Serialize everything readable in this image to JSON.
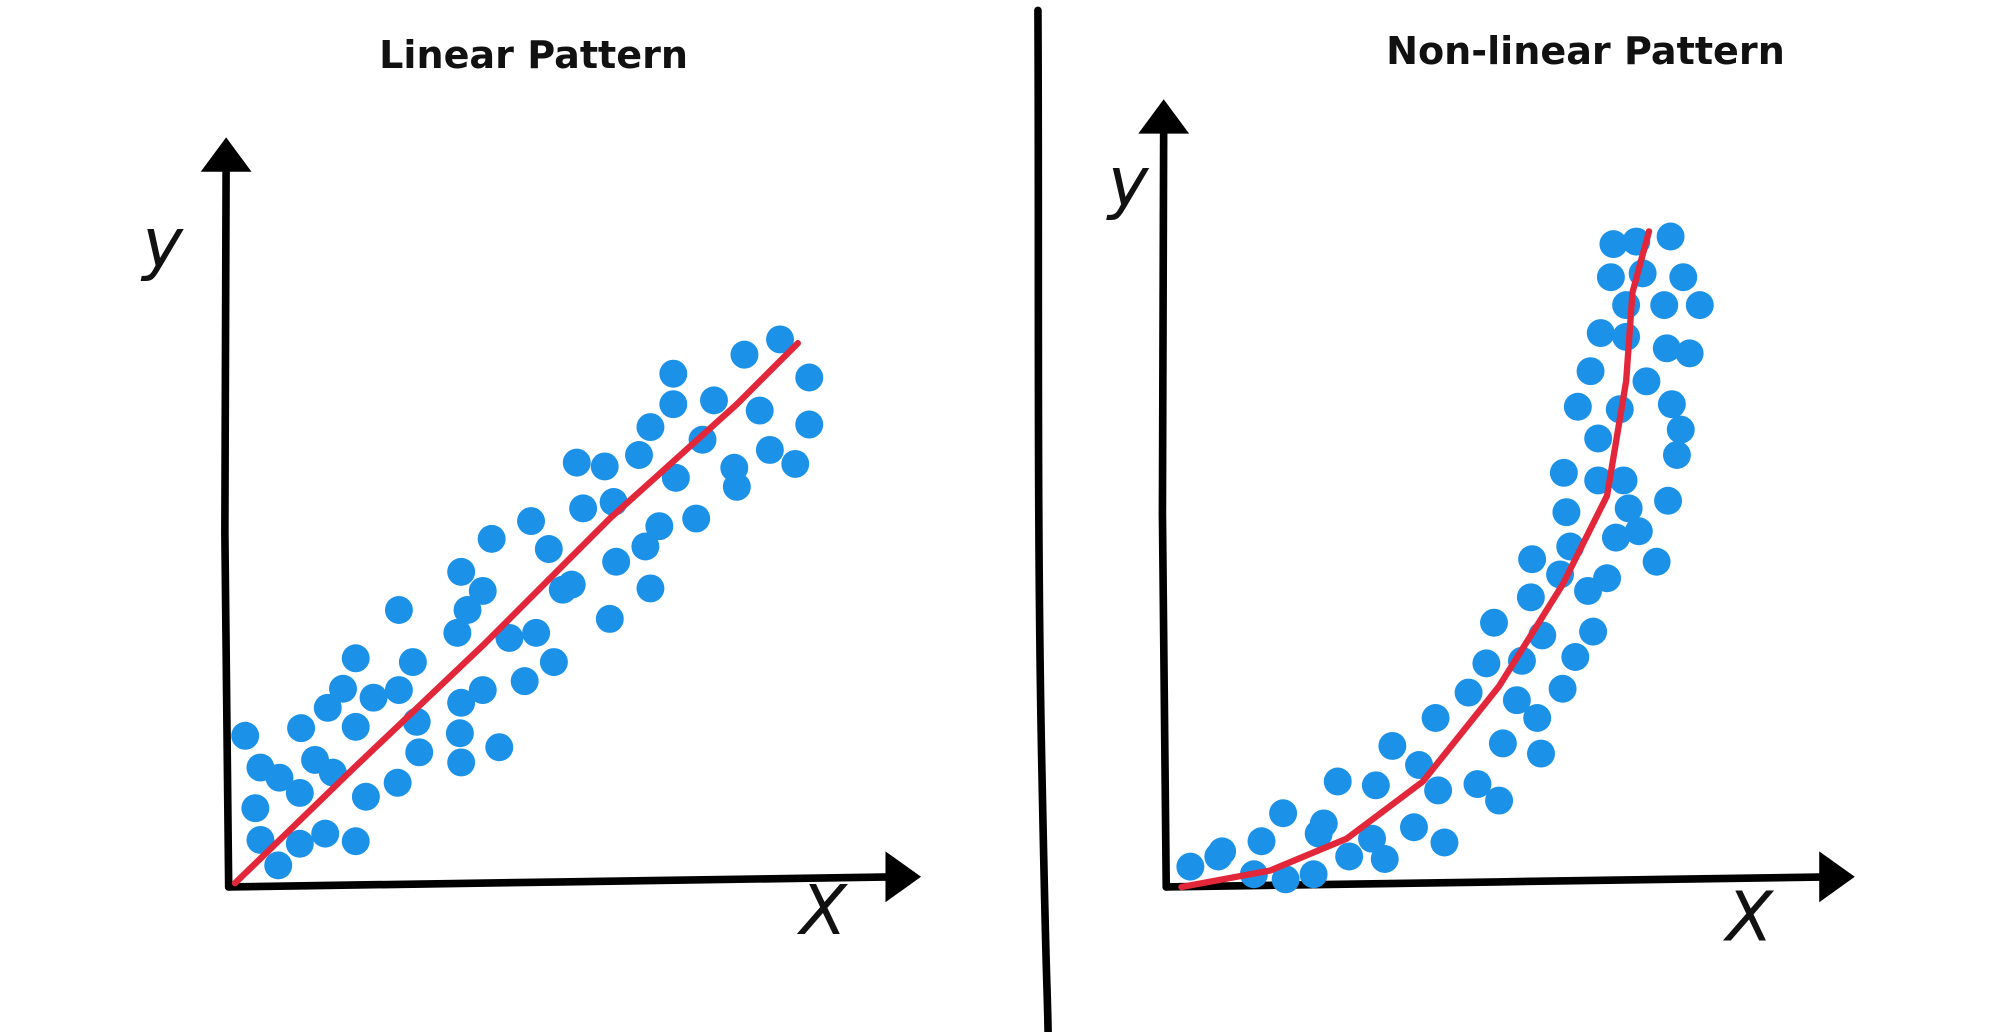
{
  "chart_data": [
    {
      "type": "scatter",
      "title": "Linear Pattern",
      "xlabel": "X",
      "ylabel": "y",
      "color": "#1b91e8",
      "xlim": [
        0,
        525
      ],
      "ylim": [
        0,
        558
      ],
      "x": [
        13,
        25,
        21,
        25,
        39,
        40,
        56,
        57,
        56,
        68,
        76,
        78,
        82,
        90,
        100,
        100,
        100,
        108,
        114,
        134,
        134,
        133,
        145,
        148,
        150,
        183,
        180,
        183,
        182,
        183,
        188,
        200,
        200,
        213,
        207,
        221,
        233,
        238,
        242,
        252,
        256,
        263,
        270,
        274,
        279,
        296,
        300,
        305,
        303,
        323,
        328,
        332,
        332,
        339,
        350,
        350,
        352,
        368,
        373,
        382,
        398,
        400,
        406,
        418,
        426,
        434,
        446,
        457,
        457
      ],
      "y": [
        119,
        94,
        62,
        37,
        17,
        86,
        74,
        125,
        34,
        100,
        42,
        141,
        90,
        156,
        126,
        180,
        36,
        71,
        149,
        155,
        218,
        82,
        177,
        130,
        106,
        248,
        200,
        145,
        121,
        98,
        218,
        233,
        155,
        110,
        274,
        196,
        162,
        288,
        200,
        266,
        177,
        234,
        238,
        334,
        298,
        331,
        211,
        256,
        303,
        340,
        268,
        235,
        362,
        284,
        404,
        380,
        322,
        290,
        352,
        383,
        330,
        315,
        419,
        375,
        344,
        431,
        333,
        401,
        364
      ],
      "trend": {
        "color": "#e3273a",
        "x": [
          5,
          100,
          200,
          300,
          400,
          448
        ],
        "y": [
          3,
          95,
          190,
          290,
          380,
          428
        ]
      }
    },
    {
      "type": "scatter",
      "title": "Non-linear Pattern",
      "xlabel": "X",
      "ylabel": "y",
      "color": "#1b91e8",
      "xlim": [
        0,
        522
      ],
      "ylim": [
        0,
        588
      ],
      "x": [
        19,
        41,
        44,
        69,
        75,
        94,
        92,
        116,
        124,
        120,
        135,
        144,
        162,
        165,
        172,
        178,
        195,
        199,
        214,
        219,
        212,
        238,
        245,
        252,
        258,
        262,
        265,
        276,
        280,
        287,
        288,
        295,
        292,
        296,
        310,
        312,
        318,
        313,
        315,
        322,
        332,
        336,
        340,
        340,
        324,
        334,
        342,
        347,
        350,
        352,
        354,
        357,
        364,
        362,
        362,
        370,
        375,
        378,
        386,
        392,
        394,
        395,
        397,
        398,
        402,
        405,
        407,
        412,
        420,
        360,
        372
      ],
      "y": [
        16,
        24,
        28,
        10,
        36,
        6,
        58,
        10,
        50,
        42,
        83,
        24,
        38,
        80,
        22,
        111,
        47,
        96,
        76,
        35,
        133,
        153,
        81,
        176,
        208,
        68,
        113,
        147,
        178,
        228,
        258,
        105,
        133,
        198,
        246,
        156,
        268,
        326,
        295,
        181,
        233,
        201,
        320,
        353,
        378,
        406,
        436,
        243,
        480,
        506,
        275,
        376,
        298,
        458,
        433,
        508,
        483,
        398,
        256,
        458,
        424,
        304,
        512,
        380,
        340,
        360,
        480,
        420,
        458,
        320,
        280
      ],
      "trend": {
        "color": "#e3273a",
        "x": [
          12,
          82,
          142,
          202,
          262,
          312,
          347,
          362,
          367,
          380
        ],
        "y": [
          0,
          13,
          38,
          83,
          158,
          238,
          308,
          398,
          468,
          516
        ]
      }
    }
  ]
}
